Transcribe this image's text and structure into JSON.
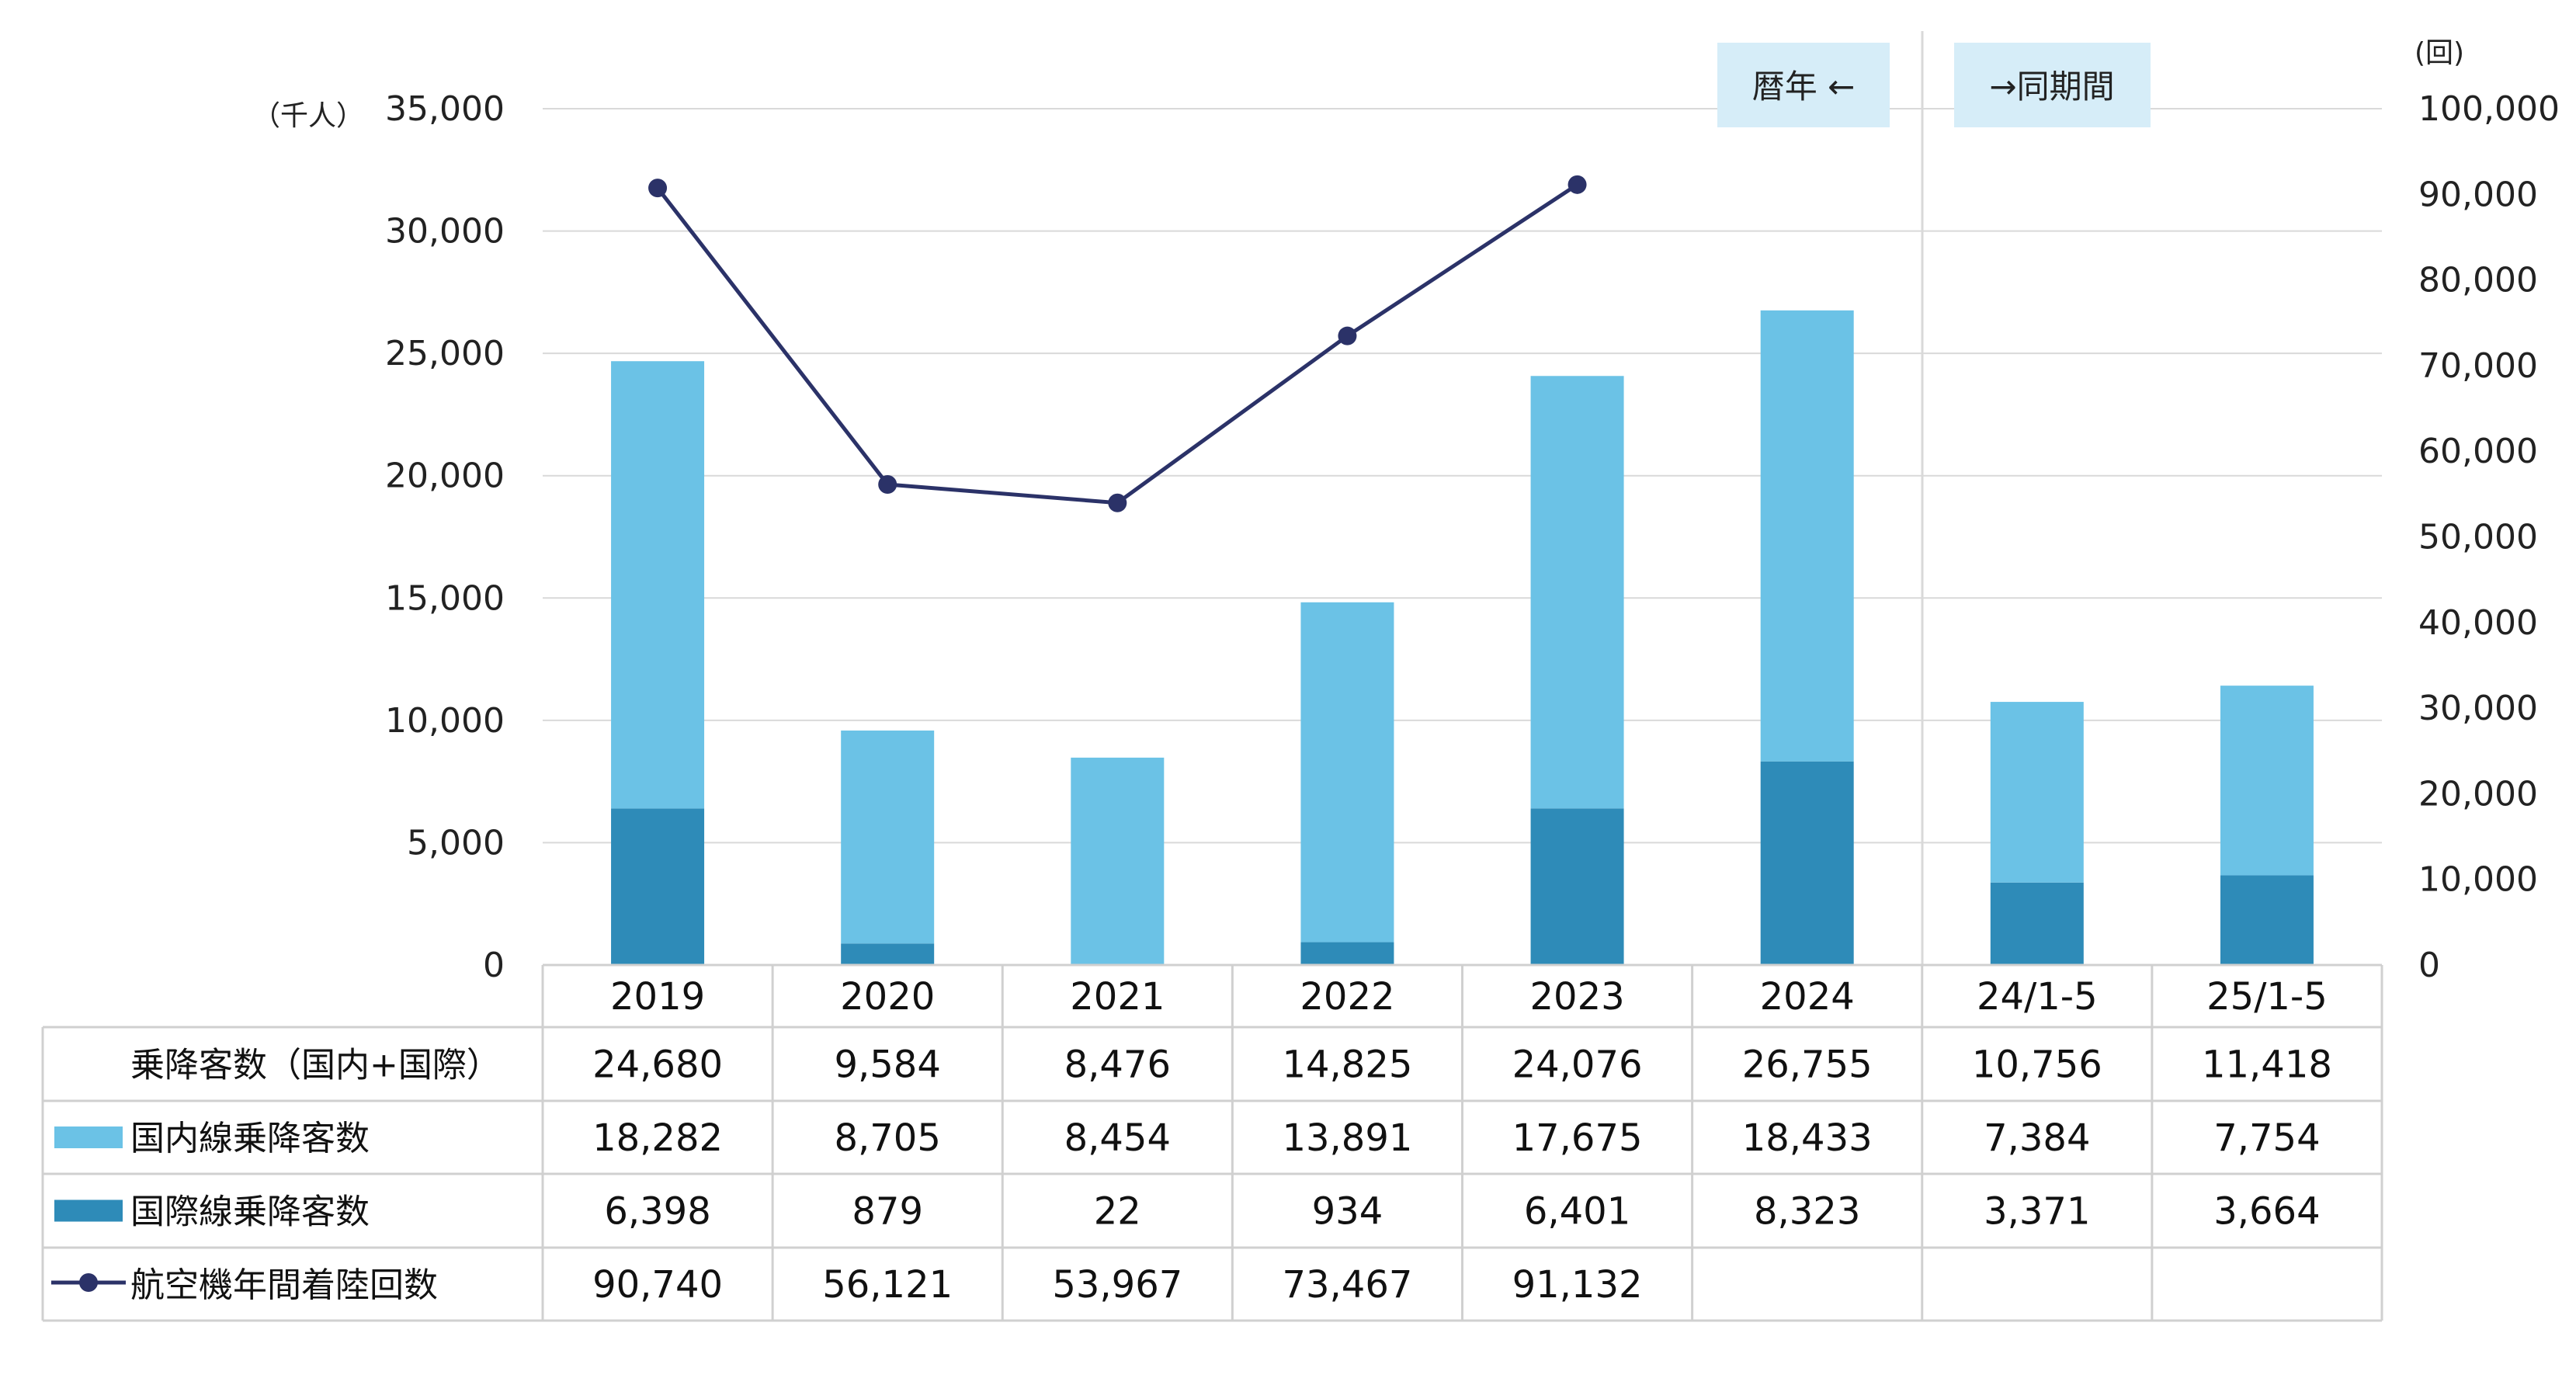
{
  "chart_data": {
    "type": "bar",
    "stacked": true,
    "categories": [
      "2019",
      "2020",
      "2021",
      "2022",
      "2023",
      "2024",
      "24/1-5",
      "25/1-5"
    ],
    "series": [
      {
        "name": "国際線乗降客数",
        "type": "bar",
        "axis": "left",
        "color": "#2e8bb8",
        "values": [
          6398,
          879,
          22,
          934,
          6401,
          8323,
          3371,
          3664
        ],
        "labels": [
          "6,398",
          "879",
          "22",
          "934",
          "6,401",
          "8,323",
          "3,371",
          "3,664"
        ]
      },
      {
        "name": "国内線乗降客数",
        "type": "bar",
        "axis": "left",
        "color": "#6bc2e6",
        "values": [
          18282,
          8705,
          8454,
          13891,
          17675,
          18433,
          7384,
          7754
        ],
        "labels": [
          "18,282",
          "8,705",
          "8,454",
          "13,891",
          "17,675",
          "18,433",
          "7,384",
          "7,754"
        ]
      },
      {
        "name": "航空機年間着陸回数",
        "type": "line",
        "axis": "right",
        "color": "#2b3268",
        "values": [
          90740,
          56121,
          53967,
          73467,
          91132,
          null,
          null,
          null
        ],
        "labels": [
          "90,740",
          "56,121",
          "53,967",
          "73,467",
          "91,132",
          "",
          "",
          ""
        ]
      }
    ],
    "totals": {
      "name": "乗降客数（国内+国際）",
      "values": [
        24680,
        9584,
        8476,
        14825,
        24076,
        26755,
        10756,
        11418
      ],
      "labels": [
        "24,680",
        "9,584",
        "8,476",
        "14,825",
        "24,076",
        "26,755",
        "10,756",
        "11,418"
      ]
    },
    "y_left": {
      "unit": "（千人）",
      "ylim": [
        0,
        35000
      ],
      "ticks": [
        "0",
        "5,000",
        "10,000",
        "15,000",
        "20,000",
        "25,000",
        "30,000",
        "35,000"
      ]
    },
    "y_right": {
      "unit": "(回)",
      "ylim": [
        0,
        100000
      ],
      "ticks": [
        "0",
        "10,000",
        "20,000",
        "30,000",
        "40,000",
        "50,000",
        "60,000",
        "70,000",
        "80,000",
        "90,000",
        "100,000"
      ]
    },
    "annotations": [
      "暦年 ←",
      "→同期間"
    ],
    "note_color": "#d6edf8",
    "grid": true,
    "legend": "data-table"
  }
}
